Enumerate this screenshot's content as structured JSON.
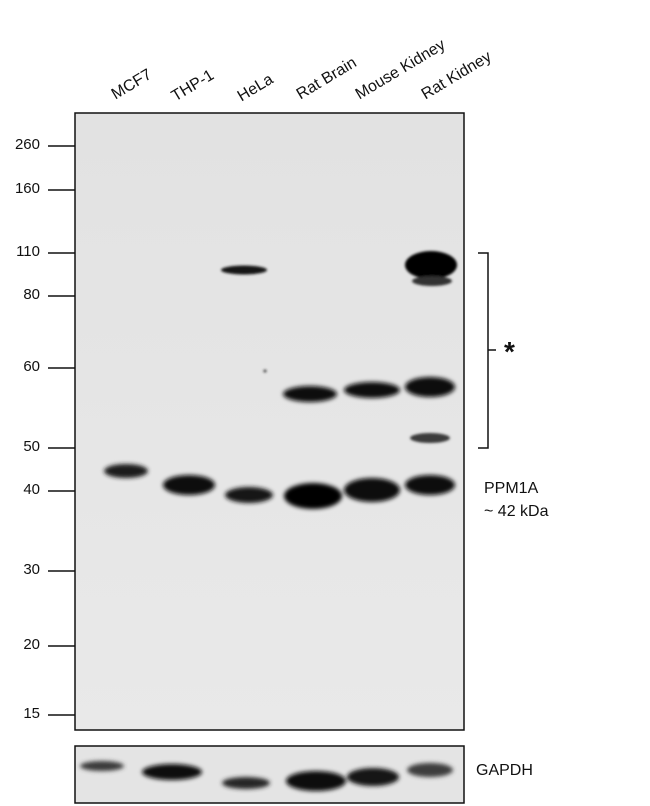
{
  "lanes": [
    "MCF7",
    "THP-1",
    "HeLa",
    "Rat Brain",
    "Mouse Kidney",
    "Rat Kidney"
  ],
  "mw_markers": [
    "260",
    "160",
    "110",
    "80",
    "60",
    "50",
    "40",
    "30",
    "20",
    "15"
  ],
  "target": {
    "name": "PPM1A",
    "size": "~ 42 kDa"
  },
  "nonspecific_marker": "*",
  "loading_control": "GAPDH"
}
